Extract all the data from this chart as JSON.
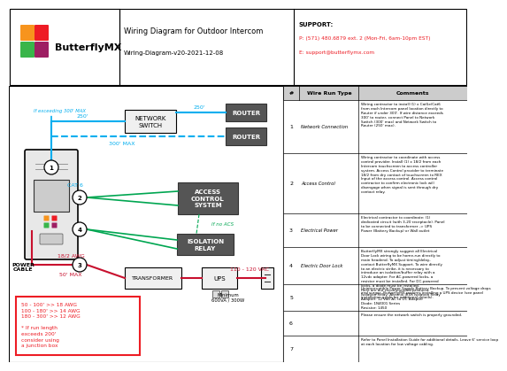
{
  "title": "Wiring Diagram for Outdoor Intercom",
  "subtitle": "Wiring-Diagram-v20-2021-12-08",
  "logo_text": "ButterflyMX",
  "bg_color": "#ffffff",
  "cyan": "#00aeef",
  "green": "#00a651",
  "red": "#ed1c24",
  "dark_red": "#c8102e",
  "logo_colors": [
    "#f7941d",
    "#ee1c25",
    "#39b54a",
    "#9e1f63"
  ],
  "rows": [
    {
      "num": "1",
      "type": "Network Connection",
      "comment": "Wiring contractor to install (1) x Cat5e/Cat6\nfrom each Intercom panel location directly to\nRouter if under 300'. If wire distance exceeds\n300' to router, connect Panel to Network\nSwitch (300' max) and Network Switch to\nRouter (250' max)."
    },
    {
      "num": "2",
      "type": "Access Control",
      "comment": "Wiring contractor to coordinate with access\ncontrol provider. Install (1) x 18/2 from each\nIntercom touchscreen to access controller\nsystem. Access Control provider to terminate\n18/2 from dry contact of touchscreen to REX\nInput of the access control. Access control\ncontractor to confirm electronic lock will\ndisengage when signal is sent through dry\ncontact relay."
    },
    {
      "num": "3",
      "type": "Electrical Power",
      "comment": "Electrical contractor to coordinate: (1)\ndedicated circuit (with 3-20 receptacle). Panel\nto be connected to transformer -> UPS\nPower (Battery Backup) or Wall outlet"
    },
    {
      "num": "4",
      "type": "Electric Door Lock",
      "comment": "ButterflyMX strongly suggest all Electrical\nDoor Lock wiring to be home-run directly to\nmain headend. To adjust timing/delay,\ncontact ButterflyMX Support. To wire directly\nto an electric strike, it is necessary to\nintroduce an isolation/buffer relay with a\n12vdc adapter. For AC-powered locks, a\nresistor must be installed. For DC-powered\nlocks, a diode must be installed.\nHere are our recommended products:\nIsolation Relay: Altronix IR5S Isolation Relay\nAdapter: 12 Volt AC to DC Adapter\nDiode: 1N4001 Series\nResistor: 1450"
    },
    {
      "num": "5",
      "type": "",
      "comment": "Uninterruptible Power Supply Battery Backup. To prevent voltage drops\nand surges, ButterflyMX requires installing a UPS device (see panel\ninstallation guide for additional details)."
    },
    {
      "num": "6",
      "type": "",
      "comment": "Please ensure the network switch is properly grounded."
    },
    {
      "num": "7",
      "type": "",
      "comment": "Refer to Panel Installation Guide for additional details. Leave 6' service loop\nat each location for low voltage cabling."
    }
  ]
}
